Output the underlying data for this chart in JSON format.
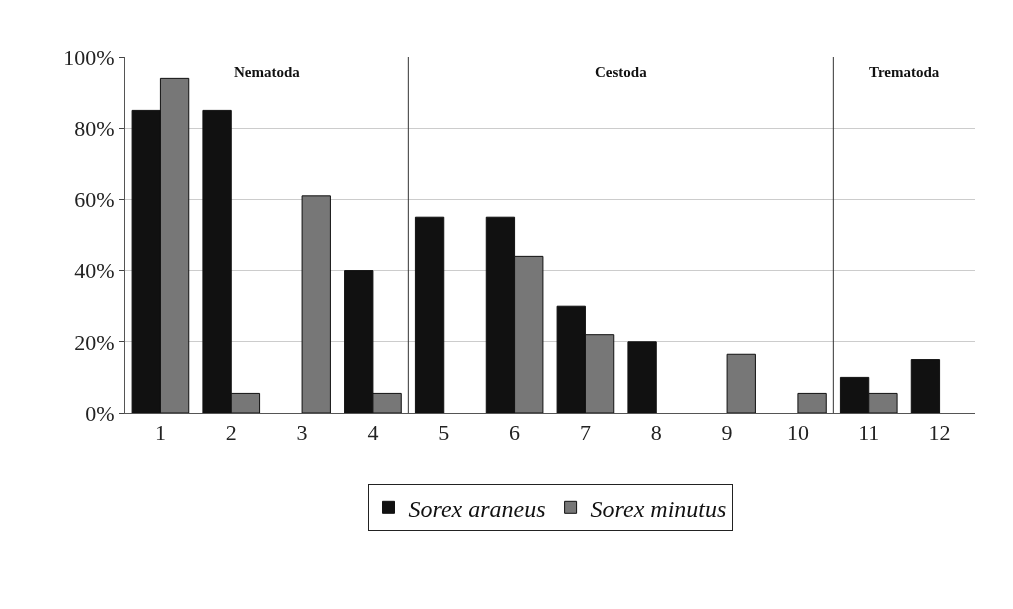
{
  "chart_data": {
    "type": "bar",
    "x": [
      1,
      2,
      3,
      4,
      5,
      6,
      7,
      8,
      9,
      10,
      11,
      12
    ],
    "series": [
      {
        "name": "Sorex araneus",
        "color": "#111111",
        "values": [
          85,
          85,
          null,
          40,
          55,
          55,
          30,
          20,
          null,
          null,
          10,
          15
        ]
      },
      {
        "name": "Sorex minutus",
        "color": "#777777",
        "values": [
          94,
          5.5,
          61,
          5.5,
          null,
          44,
          22,
          null,
          16.5,
          5.5,
          5.5,
          null
        ]
      }
    ],
    "xlim": [
      0.5,
      12.5
    ],
    "xticks": [
      1,
      2,
      3,
      4,
      5,
      6,
      7,
      8,
      9,
      10,
      11,
      12
    ],
    "ylim": [
      0,
      100
    ],
    "yticks": [
      {
        "value": 0,
        "label": "0%"
      },
      {
        "value": 20,
        "label": "20%"
      },
      {
        "value": 40,
        "label": "40%"
      },
      {
        "value": 60,
        "label": "60%"
      },
      {
        "value": 80,
        "label": "80%"
      },
      {
        "value": 100,
        "label": "100%"
      }
    ],
    "ref_lines": [
      {
        "axis": "x",
        "value": 4.5
      },
      {
        "axis": "x",
        "value": 10.5
      }
    ],
    "annotations": [
      "Nematoda",
      "Cestoda",
      "Trematoda"
    ],
    "grid": "y",
    "legend": "bottom"
  }
}
